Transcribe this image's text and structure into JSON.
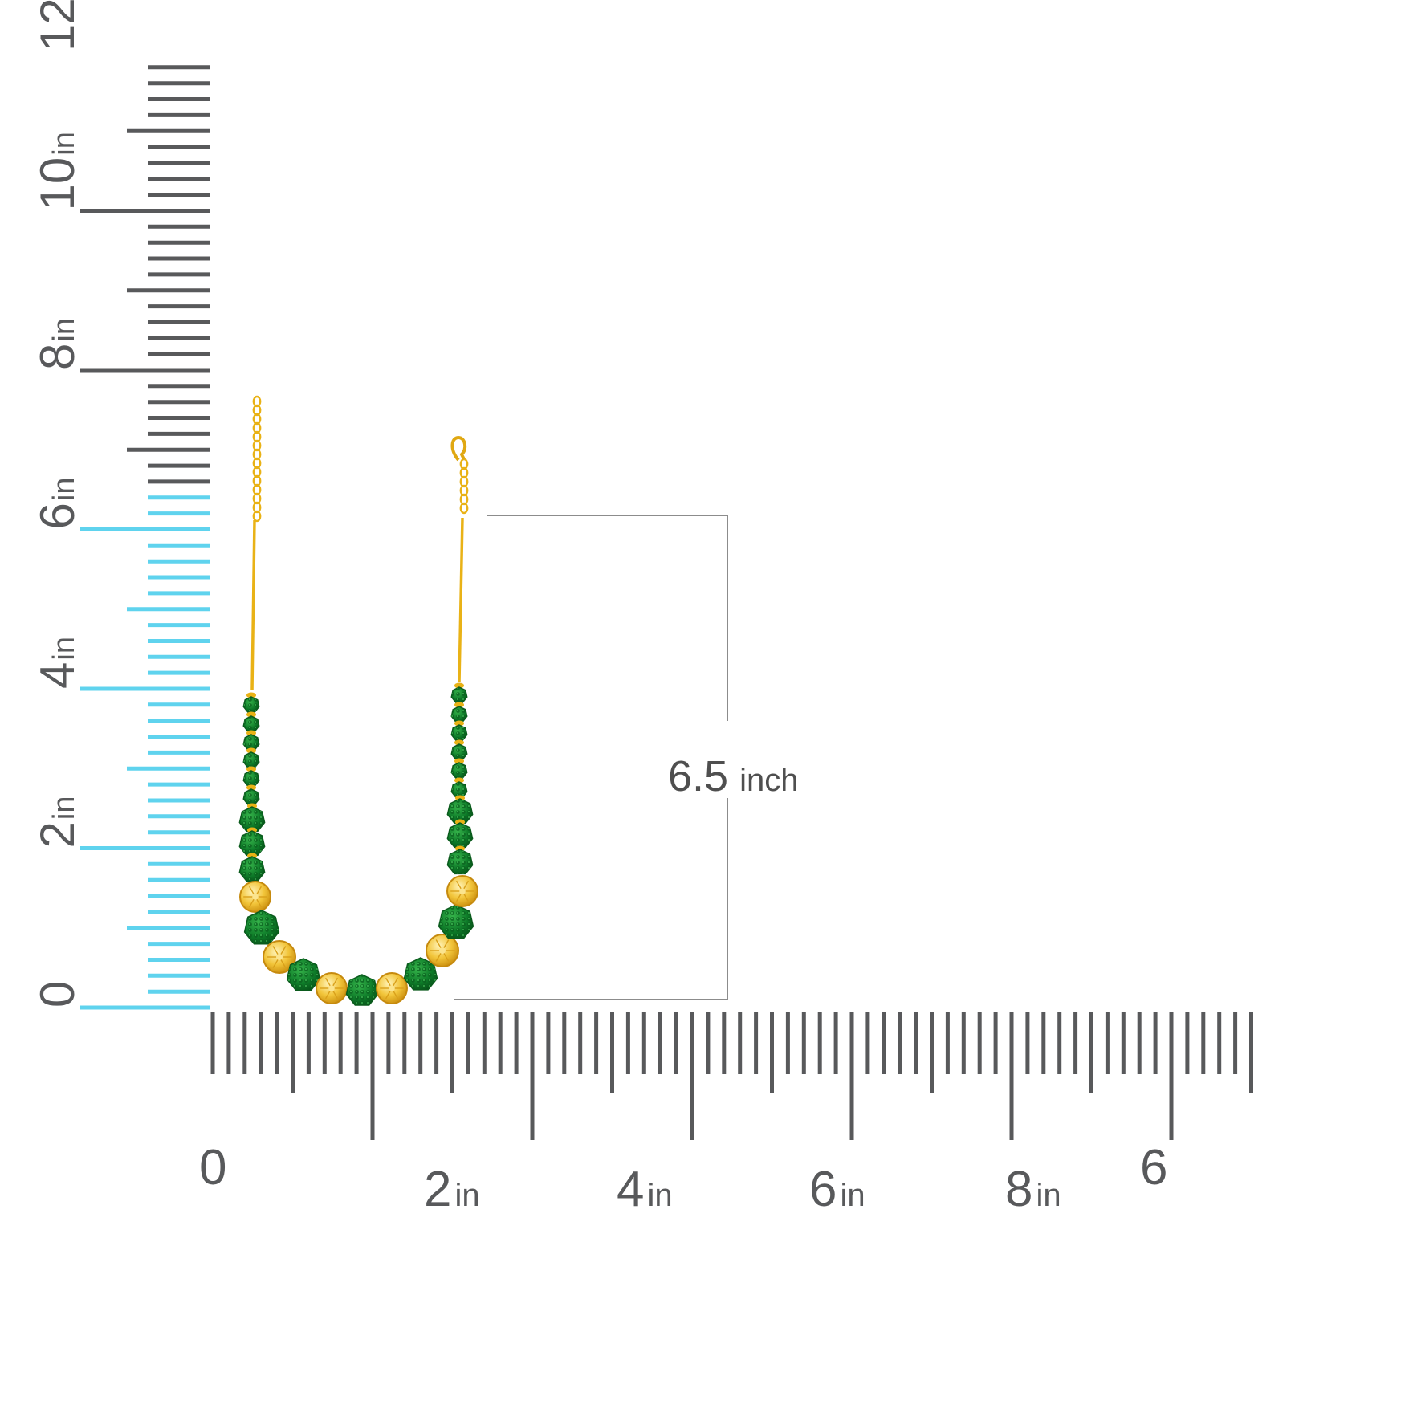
{
  "vertical_ruler": {
    "labels": [
      {
        "num": "0",
        "unit": ""
      },
      {
        "num": "2",
        "unit": "in"
      },
      {
        "num": "4",
        "unit": "in"
      },
      {
        "num": "6",
        "unit": "in"
      },
      {
        "num": "8",
        "unit": "in"
      },
      {
        "num": "10",
        "unit": "in"
      },
      {
        "num": "12",
        "unit": "in"
      }
    ],
    "highlight_range_in": [
      0,
      6.5
    ]
  },
  "horizontal_ruler": {
    "labels": [
      {
        "num": "0",
        "unit": ""
      },
      {
        "num": "2",
        "unit": "in"
      },
      {
        "num": "4",
        "unit": "in"
      },
      {
        "num": "6",
        "unit": "in"
      },
      {
        "num": "8",
        "unit": "in"
      },
      {
        "num": "6",
        "unit": ""
      }
    ]
  },
  "measurement": {
    "value": "6.5",
    "unit": "inch"
  },
  "colors": {
    "ruler": "#58595b",
    "highlight": "#5fd3ee",
    "gold": "#e9b216",
    "gold_light": "#f5d774",
    "emerald": "#0e7a2a",
    "bracket": "#8c8c8c"
  }
}
